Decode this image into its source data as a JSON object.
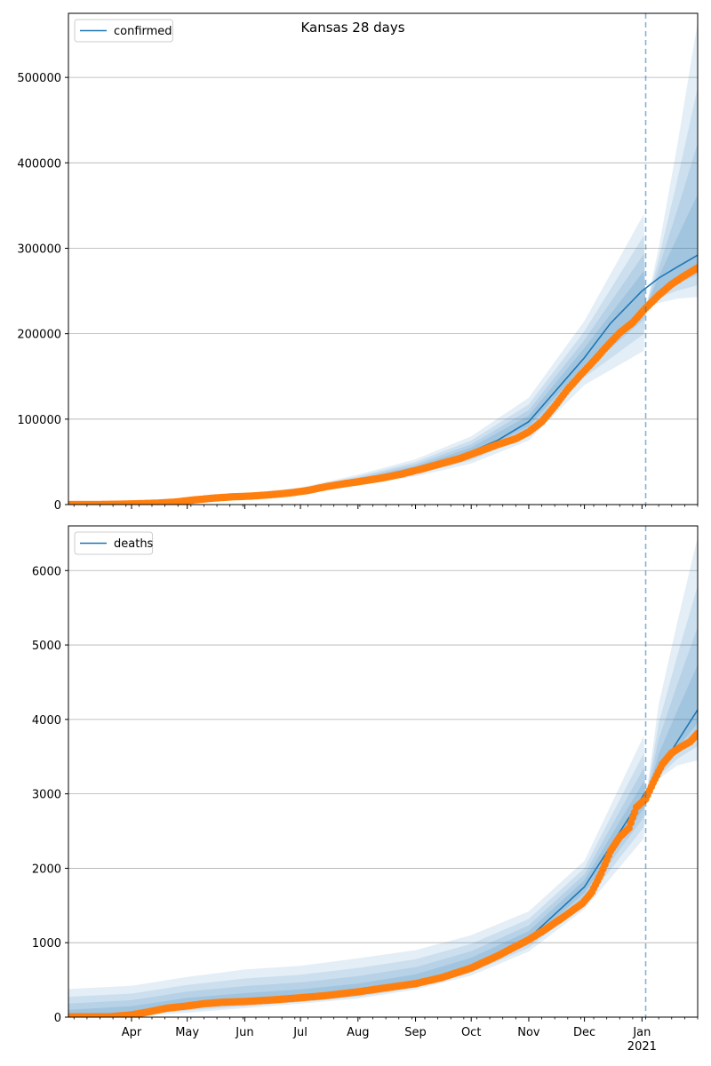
{
  "figure": {
    "title": "Kansas 28 days"
  },
  "chart_data": [
    {
      "type": "line",
      "title": "Kansas 28 days",
      "xlabel": "",
      "ylabel": "",
      "ylim": [
        0,
        575000
      ],
      "xlim": [
        "2020-02-27",
        "2021-01-31"
      ],
      "yticks": [
        0,
        100000,
        200000,
        300000,
        400000,
        500000
      ],
      "ytick_labels": [
        "0",
        "100000",
        "200000",
        "300000",
        "400000",
        "500000"
      ],
      "grid": "y",
      "legend": {
        "position": "top-left",
        "entries": [
          "confirmed"
        ]
      },
      "forecast_start": "2021-01-03",
      "series": [
        {
          "name": "confirmed",
          "kind": "line",
          "color": "#1f77b4",
          "points": [
            [
              "2020-02-27",
              0
            ],
            [
              "2020-03-20",
              100
            ],
            [
              "2020-04-15",
              1500
            ],
            [
              "2020-05-01",
              5000
            ],
            [
              "2020-05-15",
              8000
            ],
            [
              "2020-06-01",
              10000
            ],
            [
              "2020-06-15",
              12000
            ],
            [
              "2020-07-01",
              16000
            ],
            [
              "2020-07-15",
              22000
            ],
            [
              "2020-08-01",
              28000
            ],
            [
              "2020-08-15",
              33000
            ],
            [
              "2020-09-01",
              42000
            ],
            [
              "2020-09-15",
              50000
            ],
            [
              "2020-10-01",
              62000
            ],
            [
              "2020-10-15",
              75000
            ],
            [
              "2020-11-01",
              97000
            ],
            [
              "2020-11-15",
              132000
            ],
            [
              "2020-12-01",
              172000
            ],
            [
              "2020-12-15",
              212000
            ],
            [
              "2021-01-01",
              250000
            ],
            [
              "2021-01-10",
              265000
            ],
            [
              "2021-01-20",
              278000
            ],
            [
              "2021-01-31",
              292000
            ]
          ]
        },
        {
          "kind": "scatter",
          "color": "#ff7f0e",
          "points": [
            [
              "2020-02-28",
              0
            ],
            [
              "2020-03-10",
              0
            ],
            [
              "2020-03-25",
              400
            ],
            [
              "2020-04-05",
              1000
            ],
            [
              "2020-04-15",
              1700
            ],
            [
              "2020-04-25",
              3000
            ],
            [
              "2020-05-05",
              5500
            ],
            [
              "2020-05-15",
              7500
            ],
            [
              "2020-05-25",
              9000
            ],
            [
              "2020-06-05",
              10000
            ],
            [
              "2020-06-15",
              11500
            ],
            [
              "2020-06-25",
              13500
            ],
            [
              "2020-07-05",
              16500
            ],
            [
              "2020-07-15",
              21000
            ],
            [
              "2020-07-25",
              24500
            ],
            [
              "2020-08-05",
              28000
            ],
            [
              "2020-08-15",
              31500
            ],
            [
              "2020-08-25",
              36000
            ],
            [
              "2020-09-05",
              42000
            ],
            [
              "2020-09-15",
              48000
            ],
            [
              "2020-09-25",
              54000
            ],
            [
              "2020-10-05",
              62000
            ],
            [
              "2020-10-15",
              70000
            ],
            [
              "2020-10-25",
              77000
            ],
            [
              "2020-11-01",
              85000
            ],
            [
              "2020-11-08",
              97000
            ],
            [
              "2020-11-15",
              115000
            ],
            [
              "2020-11-22",
              135000
            ],
            [
              "2020-11-29",
              152000
            ],
            [
              "2020-12-06",
              168000
            ],
            [
              "2020-12-13",
              185000
            ],
            [
              "2020-12-20",
              201000
            ],
            [
              "2020-12-27",
              213000
            ],
            [
              "2021-01-03",
              230000
            ],
            [
              "2021-01-10",
              245000
            ],
            [
              "2021-01-17",
              258000
            ],
            [
              "2021-01-24",
              268000
            ],
            [
              "2021-01-31",
              277000
            ]
          ]
        }
      ],
      "uncertainty_bands": {
        "color": "#1f77b4",
        "dates": [
          "2020-06-01",
          "2020-07-01",
          "2020-08-01",
          "2020-09-01",
          "2020-10-01",
          "2020-11-01",
          "2020-12-01",
          "2021-01-02",
          "2021-01-03",
          "2021-01-10",
          "2021-01-20",
          "2021-01-31"
        ],
        "median": [
          10000,
          16000,
          28000,
          42000,
          62000,
          97000,
          172000,
          250000,
          230000,
          255000,
          275000,
          292000
        ],
        "outer_lower": [
          8000,
          12500,
          22000,
          33000,
          48000,
          75000,
          140000,
          180000,
          230000,
          236000,
          241000,
          243000
        ],
        "outer_upper": [
          13000,
          20000,
          35000,
          53000,
          80000,
          125000,
          215000,
          340000,
          230000,
          300000,
          420000,
          565000
        ]
      }
    },
    {
      "type": "line",
      "xlabel": "",
      "ylabel": "",
      "ylim": [
        0,
        6600
      ],
      "xlim": [
        "2020-02-27",
        "2021-01-31"
      ],
      "yticks": [
        0,
        1000,
        2000,
        3000,
        4000,
        5000,
        6000
      ],
      "ytick_labels": [
        "0",
        "1000",
        "2000",
        "3000",
        "4000",
        "5000",
        "6000"
      ],
      "xtick_labels": [
        "Apr",
        "May",
        "Jun",
        "Jul",
        "Aug",
        "Sep",
        "Oct",
        "Nov",
        "Dec",
        "Jan\n2021"
      ],
      "grid": "y",
      "legend": {
        "position": "top-left",
        "entries": [
          "deaths"
        ]
      },
      "forecast_start": "2021-01-03",
      "series": [
        {
          "name": "deaths",
          "kind": "line",
          "color": "#1f77b4",
          "points": [
            [
              "2020-02-27",
              0
            ],
            [
              "2020-04-01",
              50
            ],
            [
              "2020-05-01",
              160
            ],
            [
              "2020-06-01",
              210
            ],
            [
              "2020-07-01",
              260
            ],
            [
              "2020-08-01",
              330
            ],
            [
              "2020-09-01",
              460
            ],
            [
              "2020-10-01",
              690
            ],
            [
              "2020-11-01",
              1060
            ],
            [
              "2020-12-01",
              1750
            ],
            [
              "2021-01-01",
              2950
            ],
            [
              "2021-01-10",
              3300
            ],
            [
              "2021-01-20",
              3700
            ],
            [
              "2021-01-31",
              4130
            ]
          ]
        },
        {
          "kind": "scatter",
          "color": "#ff7f0e",
          "points": [
            [
              "2020-02-28",
              5
            ],
            [
              "2020-03-20",
              5
            ],
            [
              "2020-04-01",
              30
            ],
            [
              "2020-04-10",
              70
            ],
            [
              "2020-04-20",
              120
            ],
            [
              "2020-05-01",
              150
            ],
            [
              "2020-05-10",
              180
            ],
            [
              "2020-05-20",
              200
            ],
            [
              "2020-06-01",
              210
            ],
            [
              "2020-06-15",
              230
            ],
            [
              "2020-07-01",
              260
            ],
            [
              "2020-07-15",
              290
            ],
            [
              "2020-08-01",
              340
            ],
            [
              "2020-08-15",
              390
            ],
            [
              "2020-09-01",
              450
            ],
            [
              "2020-09-15",
              530
            ],
            [
              "2020-10-01",
              660
            ],
            [
              "2020-10-15",
              820
            ],
            [
              "2020-10-25",
              950
            ],
            [
              "2020-11-01",
              1040
            ],
            [
              "2020-11-10",
              1180
            ],
            [
              "2020-11-20",
              1350
            ],
            [
              "2020-11-30",
              1530
            ],
            [
              "2020-12-05",
              1680
            ],
            [
              "2020-12-10",
              1930
            ],
            [
              "2020-12-15",
              2230
            ],
            [
              "2020-12-20",
              2420
            ],
            [
              "2020-12-25",
              2540
            ],
            [
              "2020-12-29",
              2820
            ],
            [
              "2021-01-03",
              2930
            ],
            [
              "2021-01-07",
              3150
            ],
            [
              "2021-01-12",
              3400
            ],
            [
              "2021-01-17",
              3550
            ],
            [
              "2021-01-22",
              3630
            ],
            [
              "2021-01-27",
              3700
            ],
            [
              "2021-01-31",
              3810
            ]
          ]
        }
      ],
      "uncertainty_bands": {
        "color": "#1f77b4",
        "dates": [
          "2020-02-27",
          "2020-04-01",
          "2020-05-01",
          "2020-06-01",
          "2020-07-01",
          "2020-08-01",
          "2020-09-01",
          "2020-10-01",
          "2020-11-01",
          "2020-12-01",
          "2021-01-02",
          "2021-01-03",
          "2021-01-10",
          "2021-01-20",
          "2021-01-31"
        ],
        "median": [
          0,
          50,
          160,
          210,
          260,
          330,
          460,
          690,
          1060,
          1750,
          2950,
          2930,
          3300,
          3700,
          4130
        ],
        "outer_lower": [
          0,
          10,
          60,
          120,
          180,
          250,
          370,
          560,
          880,
          1450,
          2400,
          2930,
          3200,
          3380,
          3450
        ],
        "outer_upper": [
          380,
          420,
          540,
          640,
          690,
          790,
          900,
          1100,
          1420,
          2100,
          3780,
          2930,
          4200,
          5300,
          6450
        ]
      }
    }
  ]
}
